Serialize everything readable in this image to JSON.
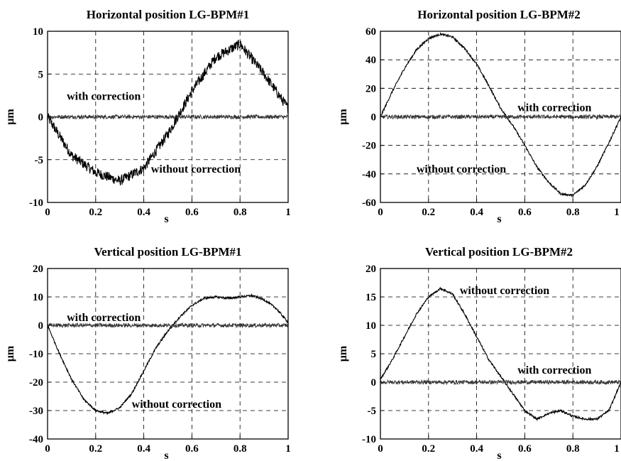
{
  "chart_data": [
    {
      "type": "line",
      "title": "Horizontal position LG-BPM#1",
      "xlabel": "s",
      "ylabel": "µm",
      "xlim": [
        0,
        1
      ],
      "ylim": [
        -10,
        10
      ],
      "x_ticks": [
        "0",
        "0.2",
        "0.4",
        "0.6",
        "0.8",
        "1"
      ],
      "y_ticks": [
        "10",
        "5",
        "0",
        "-5",
        "-10"
      ],
      "grid": true,
      "x": [
        0,
        0.1,
        0.2,
        0.3,
        0.4,
        0.5,
        0.6,
        0.7,
        0.8,
        0.9,
        1.0
      ],
      "series": [
        {
          "name": "without correction",
          "values": [
            0,
            -4.5,
            -6.5,
            -7.5,
            -6,
            -2,
            3,
            7,
            8.5,
            5,
            1
          ]
        },
        {
          "name": "with correction",
          "values": [
            0,
            0,
            0,
            0,
            0,
            0,
            0,
            0,
            0,
            0,
            0
          ]
        }
      ],
      "annotations": [
        {
          "text": "with correction",
          "x": 0.08,
          "y": 2
        },
        {
          "text": "without correction",
          "x": 0.43,
          "y": -6.5
        }
      ]
    },
    {
      "type": "line",
      "title": "Horizontal position LG-BPM#2",
      "xlabel": "s",
      "ylabel": "µm",
      "xlim": [
        0,
        1
      ],
      "ylim": [
        -60,
        60
      ],
      "x_ticks": [
        "0",
        "0.2",
        "0.4",
        "0.6",
        "0.8",
        "1"
      ],
      "y_ticks": [
        "60",
        "40",
        "20",
        "0",
        "-20",
        "-40",
        "-60"
      ],
      "grid": true,
      "x": [
        0,
        0.05,
        0.1,
        0.15,
        0.2,
        0.25,
        0.3,
        0.35,
        0.4,
        0.45,
        0.5,
        0.55,
        0.6,
        0.65,
        0.7,
        0.75,
        0.8,
        0.85,
        0.9,
        0.95,
        1.0
      ],
      "series": [
        {
          "name": "without correction",
          "values": [
            0,
            18,
            34,
            47,
            55,
            58,
            56,
            48,
            37,
            22,
            6,
            -6,
            -20,
            -35,
            -46,
            -54,
            -55,
            -48,
            -35,
            -18,
            0
          ]
        },
        {
          "name": "with correction",
          "values": [
            0,
            0,
            0,
            0,
            0,
            0,
            0,
            0,
            0,
            0,
            0,
            0,
            0,
            0,
            0,
            0,
            0,
            0,
            0,
            0,
            0
          ]
        }
      ],
      "annotations": [
        {
          "text": "with correction",
          "x": 0.57,
          "y": 4
        },
        {
          "text": "without correction",
          "x": 0.15,
          "y": -39
        }
      ]
    },
    {
      "type": "line",
      "title": "Vertical position LG-BPM#1",
      "xlabel": "s",
      "ylabel": "µm",
      "xlim": [
        0,
        1
      ],
      "ylim": [
        -40,
        20
      ],
      "x_ticks": [
        "0",
        "0.2",
        "0.4",
        "0.6",
        "0.8",
        "1"
      ],
      "y_ticks": [
        "20",
        "10",
        "0",
        "-10",
        "-20",
        "-30",
        "-40"
      ],
      "grid": true,
      "x": [
        0,
        0.05,
        0.1,
        0.15,
        0.2,
        0.25,
        0.3,
        0.35,
        0.4,
        0.45,
        0.5,
        0.55,
        0.6,
        0.65,
        0.7,
        0.75,
        0.8,
        0.85,
        0.9,
        0.95,
        1.0
      ],
      "series": [
        {
          "name": "without correction",
          "values": [
            0,
            -10,
            -19,
            -26,
            -30,
            -31,
            -29,
            -24,
            -16,
            -8,
            -2,
            3,
            7,
            9.5,
            10,
            9.5,
            10,
            10.5,
            9,
            6,
            1
          ]
        },
        {
          "name": "with correction",
          "values": [
            0,
            0,
            0,
            0,
            0,
            0,
            0,
            0,
            0,
            0,
            0,
            0,
            0,
            0,
            0,
            0,
            0,
            0,
            0,
            0,
            0
          ]
        }
      ],
      "annotations": [
        {
          "text": "with correction",
          "x": 0.08,
          "y": 1.5
        },
        {
          "text": "without correction",
          "x": 0.35,
          "y": -29
        }
      ]
    },
    {
      "type": "line",
      "title": "Vertical position LG-BPM#2",
      "xlabel": "s",
      "ylabel": "µm",
      "xlim": [
        0,
        1
      ],
      "ylim": [
        -10,
        20
      ],
      "x_ticks": [
        "0",
        "0.2",
        "0.4",
        "0.6",
        "0.8",
        "1"
      ],
      "y_ticks": [
        "20",
        "15",
        "10",
        "5",
        "0",
        "-5",
        "-10"
      ],
      "grid": true,
      "x": [
        0,
        0.05,
        0.1,
        0.15,
        0.2,
        0.25,
        0.3,
        0.35,
        0.4,
        0.45,
        0.5,
        0.55,
        0.6,
        0.65,
        0.7,
        0.75,
        0.8,
        0.85,
        0.9,
        0.95,
        1.0
      ],
      "series": [
        {
          "name": "without correction",
          "values": [
            0.5,
            4,
            8,
            12,
            15,
            16.5,
            15.5,
            12,
            8,
            4,
            1,
            -2,
            -5,
            -6.5,
            -5.5,
            -5,
            -6,
            -6.5,
            -6.5,
            -5,
            0
          ]
        },
        {
          "name": "with correction",
          "values": [
            0,
            0,
            0,
            0,
            0,
            0,
            0,
            0,
            0,
            0,
            0,
            0,
            0,
            0,
            0,
            0,
            0,
            0,
            0,
            0,
            0
          ]
        }
      ],
      "annotations": [
        {
          "text": "without correction",
          "x": 0.33,
          "y": 15.5
        },
        {
          "text": "with correction",
          "x": 0.57,
          "y": 1.5
        }
      ]
    }
  ]
}
